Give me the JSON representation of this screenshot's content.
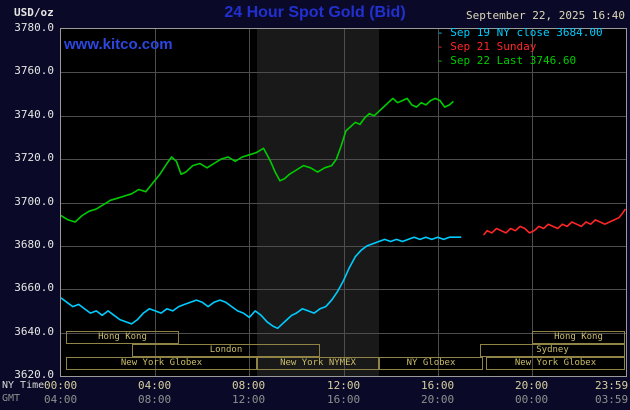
{
  "header": {
    "units": "USD/oz",
    "title": "24 Hour Spot Gold (Bid)",
    "datetime": "September 22, 2025 16:40",
    "watermark": "www.kitco.com"
  },
  "colors": {
    "background": "#0a0a28",
    "title_blue": "#2230cf",
    "series_sep19": "#00ccff",
    "series_sep21": "#ff2626",
    "series_sep22": "#00cc00",
    "session_khaki": "#cabd6c"
  },
  "axes": {
    "row1_caption": "NY Time",
    "row2_caption": "GMT",
    "y_ticks": [
      {
        "value": 3780,
        "label": "3780.0"
      },
      {
        "value": 3760,
        "label": "3760.0"
      },
      {
        "value": 3740,
        "label": "3740.0"
      },
      {
        "value": 3720,
        "label": "3720.0"
      },
      {
        "value": 3700,
        "label": "3700.0"
      },
      {
        "value": 3680,
        "label": "3680.0"
      },
      {
        "value": 3660,
        "label": "3660.0"
      },
      {
        "value": 3640,
        "label": "3640.0"
      },
      {
        "value": 3620,
        "label": "3620.0"
      }
    ],
    "x_ticks": [
      {
        "hour": 0,
        "ny": "00:00",
        "gmt": "04:00"
      },
      {
        "hour": 4,
        "ny": "04:00",
        "gmt": "08:00"
      },
      {
        "hour": 8,
        "ny": "08:00",
        "gmt": "12:00"
      },
      {
        "hour": 12,
        "ny": "12:00",
        "gmt": "16:00"
      },
      {
        "hour": 16,
        "ny": "16:00",
        "gmt": "20:00"
      },
      {
        "hour": 20,
        "ny": "20:00",
        "gmt": "00:00"
      },
      {
        "hour": 23.983,
        "ny": "23:59",
        "gmt": "03:59"
      }
    ],
    "v_grid_hours": [
      4,
      8,
      12,
      16,
      20
    ],
    "h_grid_values": [
      3640,
      3660,
      3680,
      3700,
      3720,
      3740,
      3760
    ]
  },
  "plot": {
    "highlight_band": {
      "name": "nymex-floor-session",
      "start_hour": 8.33,
      "end_hour": 13.5,
      "color": "#191919"
    }
  },
  "sessions": [
    {
      "label": "Hong Kong",
      "row": 0,
      "start_hour": 0.2,
      "end_hour": 5.0
    },
    {
      "label": "Hong Kong",
      "row": 0,
      "start_hour": 20.0,
      "end_hour": 23.97
    },
    {
      "label": "London",
      "row": 1,
      "start_hour": 3.0,
      "end_hour": 11.0
    },
    {
      "label": "Sydney",
      "row": 1,
      "start_hour": 17.8,
      "end_hour": 23.97
    },
    {
      "label": "New York Globex",
      "row": 2,
      "start_hour": 0.2,
      "end_hour": 8.33
    },
    {
      "label": "New York NYMEX",
      "row": 2,
      "start_hour": 8.33,
      "end_hour": 13.5
    },
    {
      "label": "NY Globex",
      "row": 2,
      "start_hour": 13.5,
      "end_hour": 17.9
    },
    {
      "label": "New York Globex",
      "row": 2,
      "start_hour": 18.05,
      "end_hour": 23.97
    }
  ],
  "chart_data": {
    "type": "line",
    "title": "24 Hour Spot Gold (Bid)",
    "xlabel": "NY Time",
    "ylabel": "USD/oz",
    "x_range_hours": [
      0,
      24
    ],
    "ylim": [
      3620,
      3780
    ],
    "grid": true,
    "legend_position": "top-right",
    "series": [
      {
        "id": "sep19",
        "name": "Sep 19 NY close 3684.00",
        "color": "#00ccff",
        "points": [
          [
            0,
            3656
          ],
          [
            0.25,
            3654
          ],
          [
            0.5,
            3652
          ],
          [
            0.75,
            3653
          ],
          [
            1.0,
            3651
          ],
          [
            1.25,
            3649
          ],
          [
            1.5,
            3650
          ],
          [
            1.75,
            3648
          ],
          [
            2.0,
            3650
          ],
          [
            2.25,
            3648
          ],
          [
            2.5,
            3646
          ],
          [
            2.75,
            3645
          ],
          [
            3.0,
            3644
          ],
          [
            3.25,
            3646
          ],
          [
            3.5,
            3649
          ],
          [
            3.75,
            3651
          ],
          [
            4.0,
            3650
          ],
          [
            4.25,
            3649
          ],
          [
            4.5,
            3651
          ],
          [
            4.75,
            3650
          ],
          [
            5.0,
            3652
          ],
          [
            5.25,
            3653
          ],
          [
            5.5,
            3654
          ],
          [
            5.75,
            3655
          ],
          [
            6.0,
            3654
          ],
          [
            6.25,
            3652
          ],
          [
            6.5,
            3654
          ],
          [
            6.75,
            3655
          ],
          [
            7.0,
            3654
          ],
          [
            7.25,
            3652
          ],
          [
            7.5,
            3650
          ],
          [
            7.75,
            3649
          ],
          [
            8.0,
            3647
          ],
          [
            8.25,
            3650
          ],
          [
            8.5,
            3648
          ],
          [
            8.75,
            3645
          ],
          [
            9.0,
            3643
          ],
          [
            9.2,
            3642
          ],
          [
            9.4,
            3644
          ],
          [
            9.6,
            3646
          ],
          [
            9.8,
            3648
          ],
          [
            10.0,
            3649
          ],
          [
            10.25,
            3651
          ],
          [
            10.5,
            3650
          ],
          [
            10.75,
            3649
          ],
          [
            11.0,
            3651
          ],
          [
            11.25,
            3652
          ],
          [
            11.5,
            3655
          ],
          [
            11.75,
            3659
          ],
          [
            12.0,
            3664
          ],
          [
            12.25,
            3670
          ],
          [
            12.5,
            3675
          ],
          [
            12.75,
            3678
          ],
          [
            13.0,
            3680
          ],
          [
            13.25,
            3681
          ],
          [
            13.5,
            3682
          ],
          [
            13.75,
            3683
          ],
          [
            14.0,
            3682
          ],
          [
            14.25,
            3683
          ],
          [
            14.5,
            3682
          ],
          [
            14.75,
            3683
          ],
          [
            15.0,
            3684
          ],
          [
            15.25,
            3683
          ],
          [
            15.5,
            3684
          ],
          [
            15.75,
            3683
          ],
          [
            16.0,
            3684
          ],
          [
            16.25,
            3683
          ],
          [
            16.5,
            3684
          ],
          [
            16.75,
            3684
          ],
          [
            17.0,
            3684
          ]
        ]
      },
      {
        "id": "sep21",
        "name": "Sep 21 Sunday",
        "color": "#ff2626",
        "points": [
          [
            17.95,
            3685
          ],
          [
            18.1,
            3687
          ],
          [
            18.3,
            3686
          ],
          [
            18.5,
            3688
          ],
          [
            18.7,
            3687
          ],
          [
            18.9,
            3686
          ],
          [
            19.1,
            3688
          ],
          [
            19.3,
            3687
          ],
          [
            19.5,
            3689
          ],
          [
            19.7,
            3688
          ],
          [
            19.9,
            3686
          ],
          [
            20.1,
            3687
          ],
          [
            20.3,
            3689
          ],
          [
            20.5,
            3688
          ],
          [
            20.7,
            3690
          ],
          [
            20.9,
            3689
          ],
          [
            21.1,
            3688
          ],
          [
            21.3,
            3690
          ],
          [
            21.5,
            3689
          ],
          [
            21.7,
            3691
          ],
          [
            21.9,
            3690
          ],
          [
            22.1,
            3689
          ],
          [
            22.3,
            3691
          ],
          [
            22.5,
            3690
          ],
          [
            22.7,
            3692
          ],
          [
            22.9,
            3691
          ],
          [
            23.1,
            3690
          ],
          [
            23.3,
            3691
          ],
          [
            23.5,
            3692
          ],
          [
            23.7,
            3693
          ],
          [
            23.85,
            3695
          ],
          [
            23.98,
            3697
          ]
        ]
      },
      {
        "id": "sep22",
        "name": "Sep 22 Last 3746.60",
        "color": "#00cc00",
        "points": [
          [
            0,
            3694
          ],
          [
            0.3,
            3692
          ],
          [
            0.6,
            3691
          ],
          [
            0.9,
            3694
          ],
          [
            1.2,
            3696
          ],
          [
            1.5,
            3697
          ],
          [
            1.8,
            3699
          ],
          [
            2.1,
            3701
          ],
          [
            2.4,
            3702
          ],
          [
            2.7,
            3703
          ],
          [
            3.0,
            3704
          ],
          [
            3.3,
            3706
          ],
          [
            3.6,
            3705
          ],
          [
            3.9,
            3709
          ],
          [
            4.2,
            3713
          ],
          [
            4.5,
            3718
          ],
          [
            4.7,
            3721
          ],
          [
            4.9,
            3719
          ],
          [
            5.1,
            3713
          ],
          [
            5.3,
            3714
          ],
          [
            5.6,
            3717
          ],
          [
            5.9,
            3718
          ],
          [
            6.2,
            3716
          ],
          [
            6.5,
            3718
          ],
          [
            6.8,
            3720
          ],
          [
            7.1,
            3721
          ],
          [
            7.4,
            3719
          ],
          [
            7.7,
            3721
          ],
          [
            8.0,
            3722
          ],
          [
            8.3,
            3723
          ],
          [
            8.6,
            3725
          ],
          [
            8.9,
            3719
          ],
          [
            9.1,
            3714
          ],
          [
            9.3,
            3710
          ],
          [
            9.5,
            3711
          ],
          [
            9.7,
            3713
          ],
          [
            10.0,
            3715
          ],
          [
            10.3,
            3717
          ],
          [
            10.6,
            3716
          ],
          [
            10.9,
            3714
          ],
          [
            11.2,
            3716
          ],
          [
            11.5,
            3717
          ],
          [
            11.7,
            3720
          ],
          [
            11.9,
            3726
          ],
          [
            12.1,
            3733
          ],
          [
            12.3,
            3735
          ],
          [
            12.5,
            3737
          ],
          [
            12.7,
            3736
          ],
          [
            12.9,
            3739
          ],
          [
            13.1,
            3741
          ],
          [
            13.3,
            3740
          ],
          [
            13.5,
            3742
          ],
          [
            13.7,
            3744
          ],
          [
            13.9,
            3746
          ],
          [
            14.1,
            3748
          ],
          [
            14.3,
            3746
          ],
          [
            14.5,
            3747
          ],
          [
            14.7,
            3748
          ],
          [
            14.9,
            3745
          ],
          [
            15.1,
            3744
          ],
          [
            15.3,
            3746
          ],
          [
            15.5,
            3745
          ],
          [
            15.7,
            3747
          ],
          [
            15.9,
            3748
          ],
          [
            16.1,
            3747
          ],
          [
            16.3,
            3744
          ],
          [
            16.5,
            3745
          ],
          [
            16.67,
            3746.6
          ]
        ]
      }
    ]
  }
}
